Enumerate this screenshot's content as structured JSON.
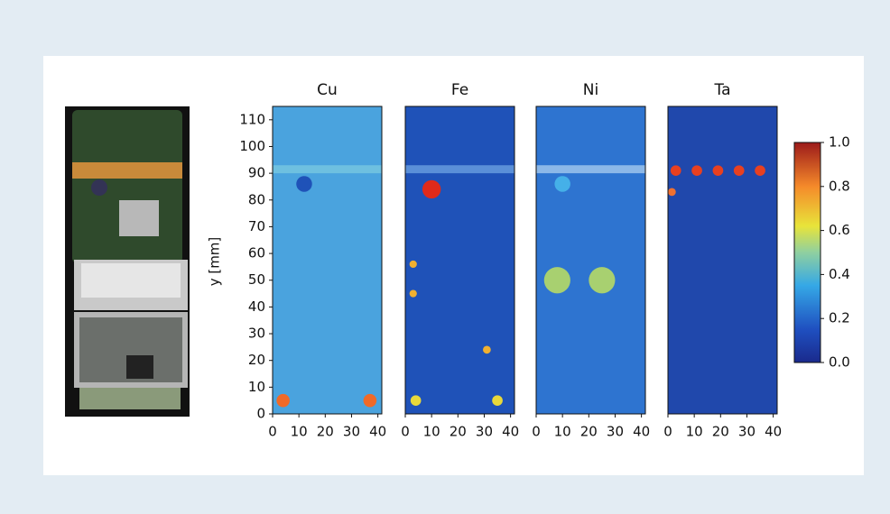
{
  "chart_data": {
    "type": "heatmap",
    "panels": [
      {
        "title": "Cu"
      },
      {
        "title": "Fe"
      },
      {
        "title": "Ni"
      },
      {
        "title": "Ta"
      }
    ],
    "y_label": "y [mm]",
    "xlim": [
      0,
      41.5
    ],
    "xticks": [
      0,
      10,
      20,
      30,
      40
    ],
    "ylim": [
      0,
      115
    ],
    "yticks": [
      0,
      10,
      20,
      30,
      40,
      50,
      60,
      70,
      80,
      90,
      100,
      110
    ],
    "colorbar": {
      "lim": [
        0,
        1
      ],
      "ticks": [
        {
          "value": 0,
          "label": "0.0"
        },
        {
          "value": 0.2,
          "label": "0.2"
        },
        {
          "value": 0.4,
          "label": "0.4"
        },
        {
          "value": 0.6,
          "label": "0.6"
        },
        {
          "value": 0.8,
          "label": "0.8"
        },
        {
          "value": 1,
          "label": "1.0"
        }
      ]
    },
    "colormap": "jet"
  }
}
